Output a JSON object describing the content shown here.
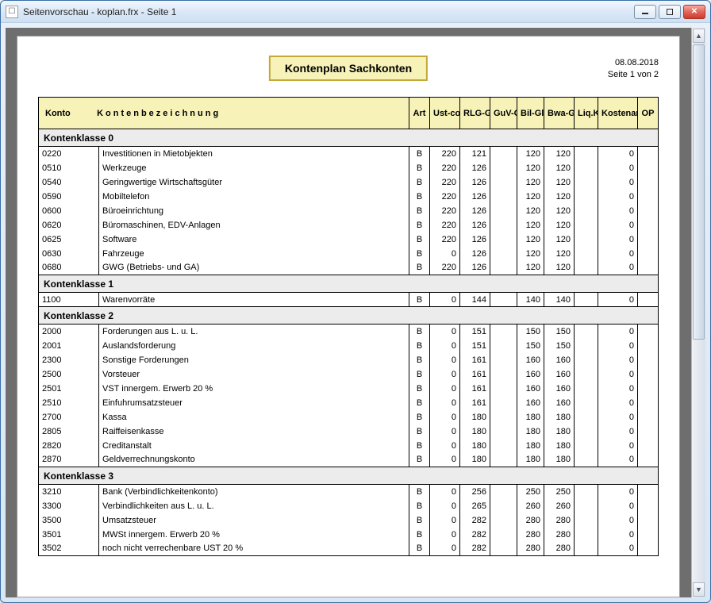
{
  "window": {
    "title": "Seitenvorschau - koplan.frx - Seite 1"
  },
  "report": {
    "title": "Kontenplan Sachkonten",
    "date": "08.08.2018",
    "page_label": "Seite 1 von 2",
    "columns": {
      "konto": "Konto",
      "bez": "Kontenbezeichnung",
      "art": "Art",
      "ust": "Ust-code",
      "rlg": "RLG-Gli.",
      "guv": "GuV-Gli.",
      "bil": "Bil-Gli.",
      "bwa": "Bwa-Gli.",
      "liq": "Liq.Kz.",
      "kost": "Kostenart",
      "op": "OP"
    },
    "groups": [
      {
        "label": "Kontenklasse 0",
        "rows": [
          {
            "konto": "0220",
            "bez": "Investitionen in Mietobjekten",
            "art": "B",
            "ust": "220",
            "rlg": "121",
            "guv": "",
            "bil": "120",
            "bwa": "120",
            "liq": "",
            "kost": "0",
            "op": ""
          },
          {
            "konto": "0510",
            "bez": "Werkzeuge",
            "art": "B",
            "ust": "220",
            "rlg": "126",
            "guv": "",
            "bil": "120",
            "bwa": "120",
            "liq": "",
            "kost": "0",
            "op": ""
          },
          {
            "konto": "0540",
            "bez": "Geringwertige Wirtschaftsgüter",
            "art": "B",
            "ust": "220",
            "rlg": "126",
            "guv": "",
            "bil": "120",
            "bwa": "120",
            "liq": "",
            "kost": "0",
            "op": ""
          },
          {
            "konto": "0590",
            "bez": "Mobiltelefon",
            "art": "B",
            "ust": "220",
            "rlg": "126",
            "guv": "",
            "bil": "120",
            "bwa": "120",
            "liq": "",
            "kost": "0",
            "op": ""
          },
          {
            "konto": "0600",
            "bez": "Büroeinrichtung",
            "art": "B",
            "ust": "220",
            "rlg": "126",
            "guv": "",
            "bil": "120",
            "bwa": "120",
            "liq": "",
            "kost": "0",
            "op": ""
          },
          {
            "konto": "0620",
            "bez": "Büromaschinen, EDV-Anlagen",
            "art": "B",
            "ust": "220",
            "rlg": "126",
            "guv": "",
            "bil": "120",
            "bwa": "120",
            "liq": "",
            "kost": "0",
            "op": ""
          },
          {
            "konto": "0625",
            "bez": "Software",
            "art": "B",
            "ust": "220",
            "rlg": "126",
            "guv": "",
            "bil": "120",
            "bwa": "120",
            "liq": "",
            "kost": "0",
            "op": ""
          },
          {
            "konto": "0630",
            "bez": "Fahrzeuge",
            "art": "B",
            "ust": "0",
            "rlg": "126",
            "guv": "",
            "bil": "120",
            "bwa": "120",
            "liq": "",
            "kost": "0",
            "op": ""
          },
          {
            "konto": "0680",
            "bez": "GWG (Betriebs- und GA)",
            "art": "B",
            "ust": "220",
            "rlg": "126",
            "guv": "",
            "bil": "120",
            "bwa": "120",
            "liq": "",
            "kost": "0",
            "op": ""
          }
        ]
      },
      {
        "label": "Kontenklasse 1",
        "rows": [
          {
            "konto": "1100",
            "bez": "Warenvorräte",
            "art": "B",
            "ust": "0",
            "rlg": "144",
            "guv": "",
            "bil": "140",
            "bwa": "140",
            "liq": "",
            "kost": "0",
            "op": ""
          }
        ]
      },
      {
        "label": "Kontenklasse 2",
        "rows": [
          {
            "konto": "2000",
            "bez": "Forderungen aus L. u. L.",
            "art": "B",
            "ust": "0",
            "rlg": "151",
            "guv": "",
            "bil": "150",
            "bwa": "150",
            "liq": "",
            "kost": "0",
            "op": ""
          },
          {
            "konto": "2001",
            "bez": "Auslandsforderung",
            "art": "B",
            "ust": "0",
            "rlg": "151",
            "guv": "",
            "bil": "150",
            "bwa": "150",
            "liq": "",
            "kost": "0",
            "op": ""
          },
          {
            "konto": "2300",
            "bez": "Sonstige Forderungen",
            "art": "B",
            "ust": "0",
            "rlg": "161",
            "guv": "",
            "bil": "160",
            "bwa": "160",
            "liq": "",
            "kost": "0",
            "op": ""
          },
          {
            "konto": "2500",
            "bez": "Vorsteuer",
            "art": "B",
            "ust": "0",
            "rlg": "161",
            "guv": "",
            "bil": "160",
            "bwa": "160",
            "liq": "",
            "kost": "0",
            "op": ""
          },
          {
            "konto": "2501",
            "bez": "VST innergem. Erwerb 20 %",
            "art": "B",
            "ust": "0",
            "rlg": "161",
            "guv": "",
            "bil": "160",
            "bwa": "160",
            "liq": "",
            "kost": "0",
            "op": ""
          },
          {
            "konto": "2510",
            "bez": "Einfuhrumsatzsteuer",
            "art": "B",
            "ust": "0",
            "rlg": "161",
            "guv": "",
            "bil": "160",
            "bwa": "160",
            "liq": "",
            "kost": "0",
            "op": ""
          },
          {
            "konto": "2700",
            "bez": "Kassa",
            "art": "B",
            "ust": "0",
            "rlg": "180",
            "guv": "",
            "bil": "180",
            "bwa": "180",
            "liq": "",
            "kost": "0",
            "op": ""
          },
          {
            "konto": "2805",
            "bez": "Raiffeisenkasse",
            "art": "B",
            "ust": "0",
            "rlg": "180",
            "guv": "",
            "bil": "180",
            "bwa": "180",
            "liq": "",
            "kost": "0",
            "op": ""
          },
          {
            "konto": "2820",
            "bez": "Creditanstalt",
            "art": "B",
            "ust": "0",
            "rlg": "180",
            "guv": "",
            "bil": "180",
            "bwa": "180",
            "liq": "",
            "kost": "0",
            "op": ""
          },
          {
            "konto": "2870",
            "bez": "Geldverrechnungskonto",
            "art": "B",
            "ust": "0",
            "rlg": "180",
            "guv": "",
            "bil": "180",
            "bwa": "180",
            "liq": "",
            "kost": "0",
            "op": ""
          }
        ]
      },
      {
        "label": "Kontenklasse 3",
        "rows": [
          {
            "konto": "3210",
            "bez": "Bank (Verbindlichkeitenkonto)",
            "art": "B",
            "ust": "0",
            "rlg": "256",
            "guv": "",
            "bil": "250",
            "bwa": "250",
            "liq": "",
            "kost": "0",
            "op": ""
          },
          {
            "konto": "3300",
            "bez": "Verbindlichkeiten aus L. u. L.",
            "art": "B",
            "ust": "0",
            "rlg": "265",
            "guv": "",
            "bil": "260",
            "bwa": "260",
            "liq": "",
            "kost": "0",
            "op": ""
          },
          {
            "konto": "3500",
            "bez": "Umsatzsteuer",
            "art": "B",
            "ust": "0",
            "rlg": "282",
            "guv": "",
            "bil": "280",
            "bwa": "280",
            "liq": "",
            "kost": "0",
            "op": ""
          },
          {
            "konto": "3501",
            "bez": "MWSt innergem. Erwerb 20 %",
            "art": "B",
            "ust": "0",
            "rlg": "282",
            "guv": "",
            "bil": "280",
            "bwa": "280",
            "liq": "",
            "kost": "0",
            "op": ""
          },
          {
            "konto": "3502",
            "bez": "noch nicht verrechenbare UST 20 %",
            "art": "B",
            "ust": "0",
            "rlg": "282",
            "guv": "",
            "bil": "280",
            "bwa": "280",
            "liq": "",
            "kost": "0",
            "op": ""
          }
        ]
      }
    ]
  }
}
